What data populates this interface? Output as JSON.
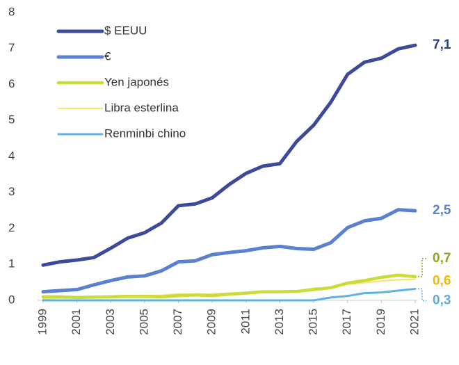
{
  "chart_data": {
    "type": "line",
    "x": [
      1999,
      2000,
      2001,
      2002,
      2003,
      2004,
      2005,
      2006,
      2007,
      2008,
      2009,
      2010,
      2011,
      2012,
      2013,
      2014,
      2015,
      2016,
      2017,
      2018,
      2019,
      2020,
      2021
    ],
    "xlim": [
      1999,
      2021
    ],
    "xticks": [
      1999,
      2001,
      2003,
      2005,
      2007,
      2009,
      2011,
      2013,
      2015,
      2017,
      2019,
      2021
    ],
    "ylim": [
      0,
      8
    ],
    "yticks": [
      0,
      1,
      2,
      3,
      4,
      5,
      6,
      7,
      8
    ],
    "grid": false,
    "legend": "upper left",
    "series": [
      {
        "name": "$ EEUU",
        "color": "#3d4a9a",
        "label_color": "#2e3a8c",
        "values": [
          0.98,
          1.07,
          1.12,
          1.19,
          1.45,
          1.73,
          1.88,
          2.15,
          2.63,
          2.68,
          2.85,
          3.22,
          3.53,
          3.73,
          3.8,
          4.42,
          4.87,
          5.5,
          6.28,
          6.62,
          6.73,
          6.99,
          7.09
        ],
        "value_labels": [
          null,
          null,
          null,
          null,
          null,
          null,
          null,
          null,
          null,
          null,
          null,
          null,
          null,
          null,
          null,
          null,
          null,
          null,
          null,
          null,
          null,
          null,
          "7,1"
        ]
      },
      {
        "name": "€",
        "color": "#5b80cf",
        "label_color": "#5b80cf",
        "values": [
          0.24,
          0.27,
          0.3,
          0.43,
          0.55,
          0.65,
          0.68,
          0.82,
          1.07,
          1.1,
          1.27,
          1.33,
          1.38,
          1.46,
          1.5,
          1.44,
          1.42,
          1.6,
          2.02,
          2.21,
          2.28,
          2.52,
          2.49
        ],
        "value_labels": [
          null,
          null,
          null,
          null,
          null,
          null,
          null,
          null,
          null,
          null,
          null,
          null,
          null,
          null,
          null,
          null,
          null,
          null,
          null,
          null,
          null,
          null,
          "2,5"
        ]
      },
      {
        "name": "Yen japonés",
        "color": "#c9dc3a",
        "label_color": "#8fa31e",
        "values": [
          0.1,
          0.1,
          0.08,
          0.09,
          0.1,
          0.11,
          0.11,
          0.1,
          0.13,
          0.15,
          0.13,
          0.17,
          0.2,
          0.24,
          0.24,
          0.25,
          0.3,
          0.35,
          0.48,
          0.55,
          0.64,
          0.7,
          0.66
        ],
        "value_labels": [
          null,
          null,
          null,
          null,
          null,
          null,
          null,
          null,
          null,
          null,
          null,
          null,
          null,
          null,
          null,
          null,
          null,
          null,
          null,
          null,
          null,
          null,
          "0,7"
        ]
      },
      {
        "name": "Libra esterlina",
        "color": "#fce07a",
        "label_color": "#f5b800",
        "values": [
          0.05,
          0.06,
          0.07,
          0.08,
          0.09,
          0.12,
          0.13,
          0.14,
          0.18,
          0.16,
          0.18,
          0.2,
          0.22,
          0.25,
          0.25,
          0.24,
          0.34,
          0.35,
          0.45,
          0.49,
          0.54,
          0.57,
          0.59
        ],
        "value_labels": [
          null,
          null,
          null,
          null,
          null,
          null,
          null,
          null,
          null,
          null,
          null,
          null,
          null,
          null,
          null,
          null,
          null,
          null,
          null,
          null,
          null,
          null,
          "0,6"
        ]
      },
      {
        "name": "Renminbi chino",
        "color": "#5eb3e4",
        "label_color": "#5aaee0",
        "values": [
          0,
          0,
          0,
          0,
          0,
          0,
          0,
          0,
          0,
          0,
          0,
          0,
          0,
          0,
          0,
          0,
          0,
          0.08,
          0.12,
          0.2,
          0.22,
          0.27,
          0.32
        ],
        "value_labels": [
          null,
          null,
          null,
          null,
          null,
          null,
          null,
          null,
          null,
          null,
          null,
          null,
          null,
          null,
          null,
          null,
          null,
          null,
          null,
          null,
          null,
          null,
          "0,3"
        ]
      }
    ]
  }
}
